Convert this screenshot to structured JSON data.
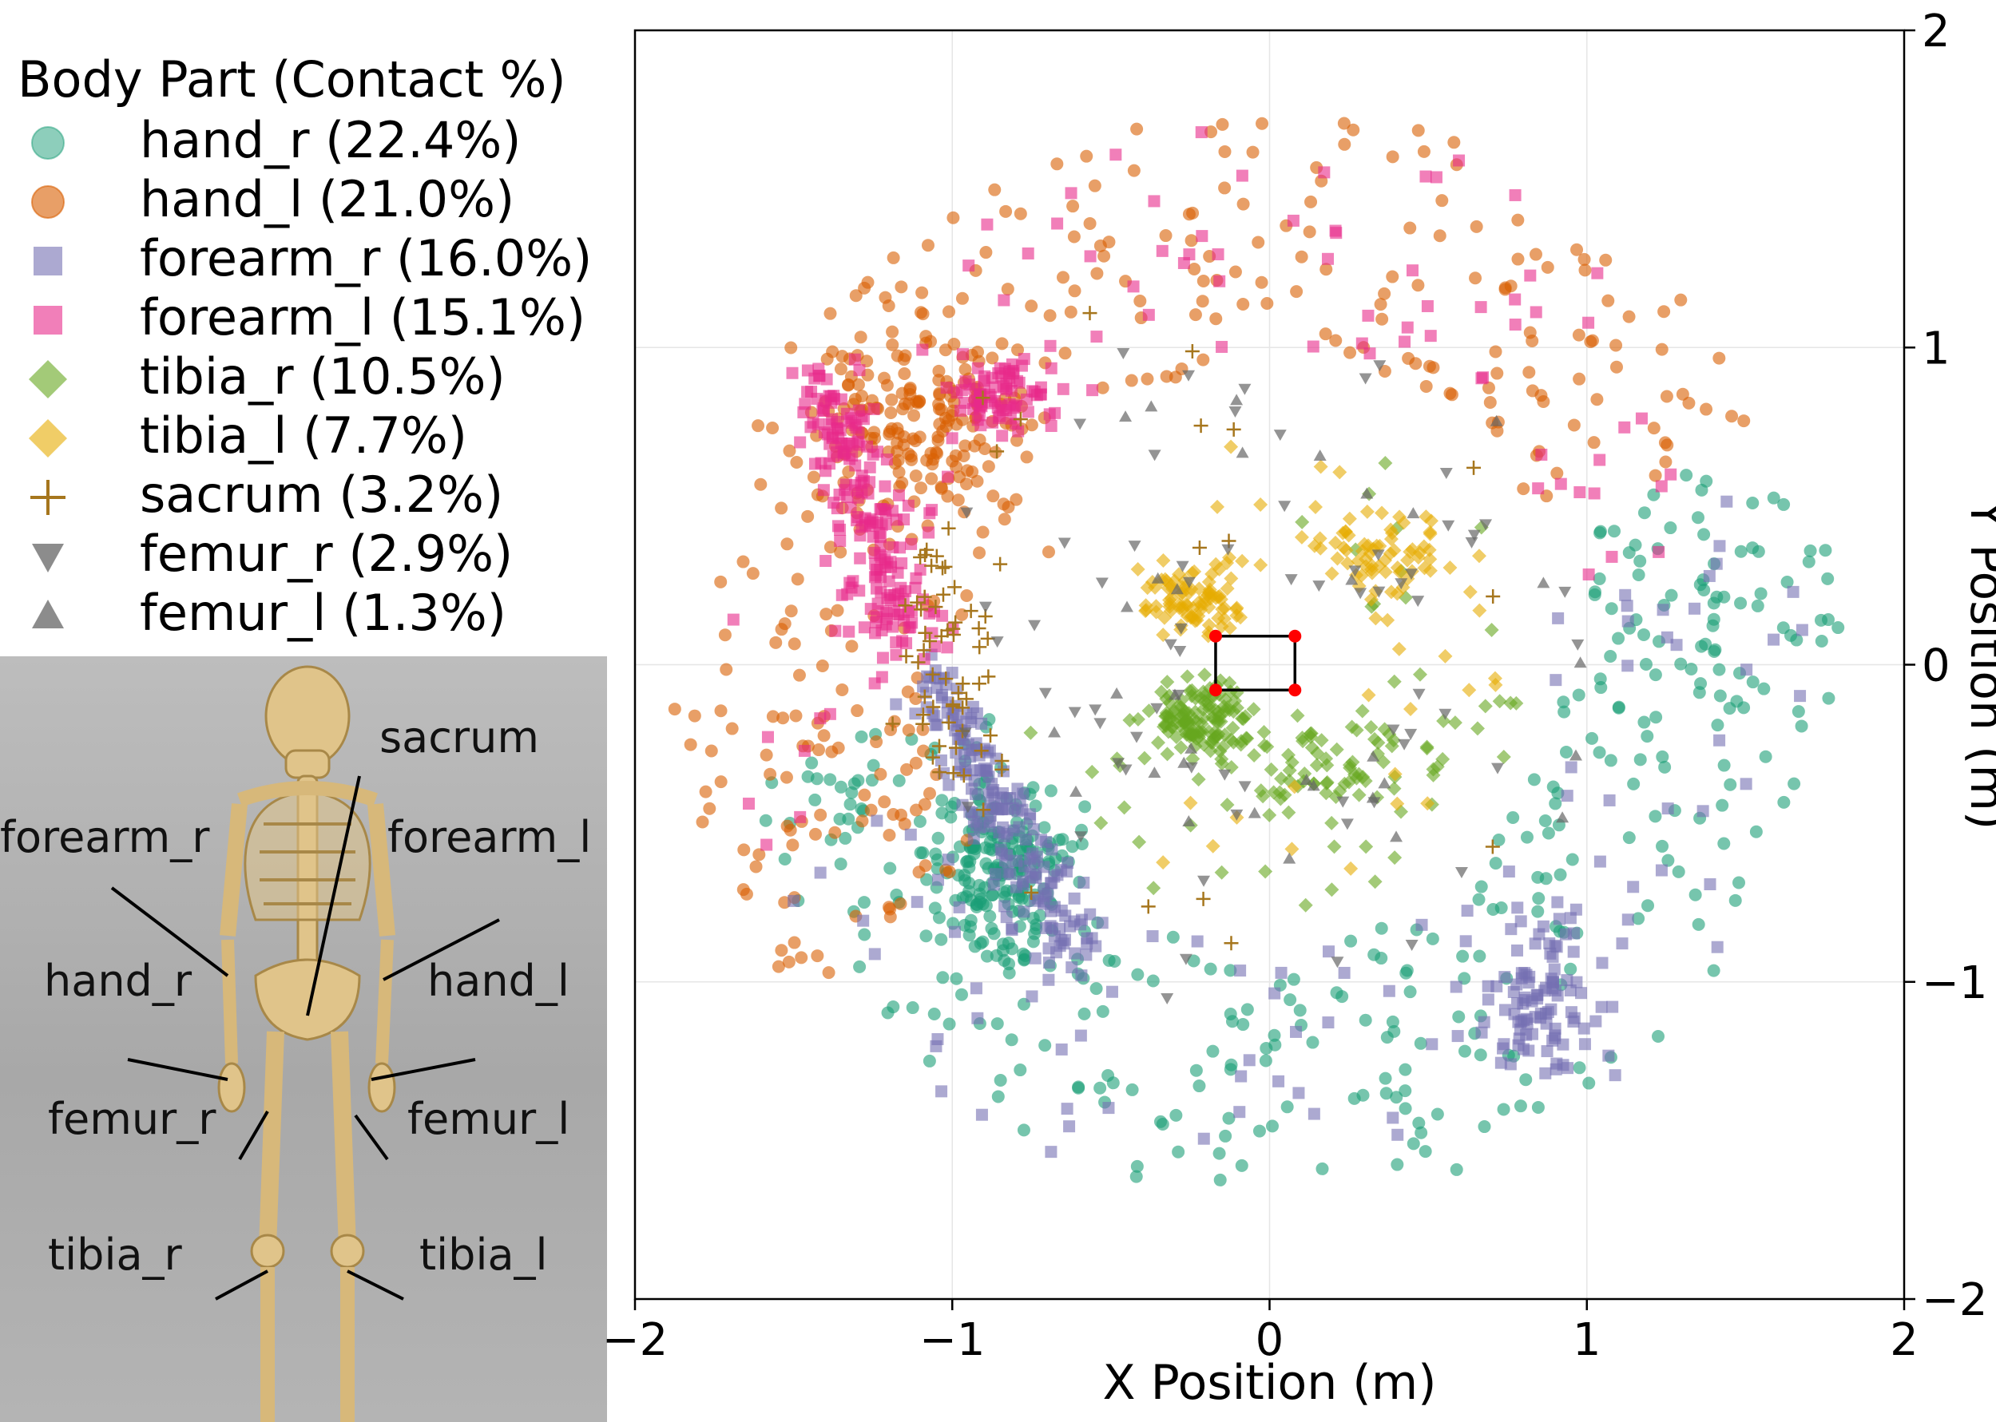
{
  "chart_data": {
    "type": "scatter",
    "xlabel": "X Position (m)",
    "ylabel": "Y Position (m)",
    "xlim": [
      -2,
      2
    ],
    "ylim": [
      -2,
      2
    ],
    "grid": true,
    "y_axis_side": "right",
    "x_ticks": [
      "−2",
      "−1",
      "0",
      "1",
      "2"
    ],
    "y_ticks": [
      "2",
      "1",
      "0",
      "−1",
      "−2"
    ],
    "legend_title": "Body Part (Contact %)",
    "legend_placement": "top-left outside",
    "series": [
      {
        "name": "hand_r (22.4%)",
        "key": "hand_r",
        "marker": "circle",
        "color": "#1b9e77",
        "count": 520
      },
      {
        "name": "hand_l (21.0%)",
        "key": "hand_l",
        "marker": "circle",
        "color": "#d95f02",
        "count": 480
      },
      {
        "name": "forearm_r (16.0%)",
        "key": "forearm_r",
        "marker": "square",
        "color": "#7570b3",
        "count": 380
      },
      {
        "name": "forearm_l (15.1%)",
        "key": "forearm_l",
        "marker": "square",
        "color": "#e7298a",
        "count": 360
      },
      {
        "name": "tibia_r (10.5%)",
        "key": "tibia_r",
        "marker": "diamond",
        "color": "#66a61e",
        "count": 250
      },
      {
        "name": "tibia_l (7.7%)",
        "key": "tibia_l",
        "marker": "diamond",
        "color": "#e6ab02",
        "count": 185
      },
      {
        "name": "sacrum (3.2%)",
        "key": "sacrum",
        "marker": "plus",
        "color": "#a6761d",
        "count": 75
      },
      {
        "name": "femur_r (2.9%)",
        "key": "femur_r",
        "marker": "triangle-down",
        "color": "#666666",
        "count": 70
      },
      {
        "name": "femur_l (1.3%)",
        "key": "femur_l",
        "marker": "triangle-up",
        "color": "#666666",
        "count": 32
      }
    ],
    "object_outline": {
      "corners": [
        [
          -0.17,
          0.09
        ],
        [
          0.08,
          0.09
        ],
        [
          0.08,
          -0.08
        ],
        [
          -0.17,
          -0.08
        ]
      ],
      "edge_color": "#000000",
      "corner_color": "#ff0000"
    }
  },
  "skeleton_panel": {
    "labels": {
      "sacrum": "sacrum",
      "forearm_r": "forearm_r",
      "forearm_l": "forearm_l",
      "hand_r": "hand_r",
      "hand_l": "hand_l",
      "femur_r": "femur_r",
      "femur_l": "femur_l",
      "tibia_r": "tibia_r",
      "tibia_l": "tibia_l"
    }
  }
}
